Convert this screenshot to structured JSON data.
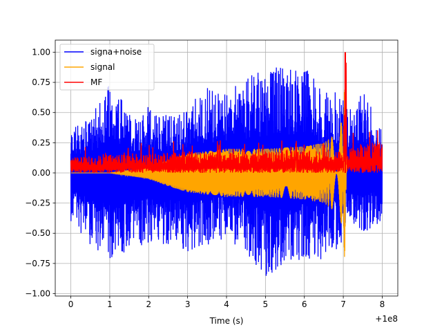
{
  "chart_data": {
    "type": "line",
    "title": "",
    "xlabel": "Time (s)",
    "ylabel": "",
    "x_offset_label": "+1e8",
    "xlim": [
      -0.4,
      8.4
    ],
    "ylim": [
      -1.02,
      1.1
    ],
    "xticks": [
      {
        "value": 0,
        "label": "0"
      },
      {
        "value": 1,
        "label": "1"
      },
      {
        "value": 2,
        "label": "2"
      },
      {
        "value": 3,
        "label": "3"
      },
      {
        "value": 4,
        "label": "4"
      },
      {
        "value": 5,
        "label": "5"
      },
      {
        "value": 6,
        "label": "6"
      },
      {
        "value": 7,
        "label": "7"
      },
      {
        "value": 8,
        "label": "8"
      }
    ],
    "yticks": [
      {
        "value": 1.0,
        "label": "1.00"
      },
      {
        "value": 0.75,
        "label": "0.75"
      },
      {
        "value": 0.5,
        "label": "0.50"
      },
      {
        "value": 0.25,
        "label": "0.25"
      },
      {
        "value": 0.0,
        "label": "0.00"
      },
      {
        "value": -0.25,
        "label": "−0.25"
      },
      {
        "value": -0.5,
        "label": "−0.50"
      },
      {
        "value": -0.75,
        "label": "−0.75"
      },
      {
        "value": -1.0,
        "label": "−1.00"
      }
    ],
    "grid": true,
    "legend_position": "top-left",
    "series": [
      {
        "name": "signa+noise",
        "color": "#0000ff",
        "description": "dense noisy oscillation, approximate upper/lower envelope",
        "x": [
          0,
          0.5,
          1,
          1.5,
          2,
          2.5,
          3,
          3.5,
          4,
          4.5,
          5,
          5.5,
          6,
          6.5,
          7,
          7.1,
          7.5,
          8
        ],
        "upper": [
          0.4,
          0.45,
          0.78,
          0.5,
          0.55,
          0.5,
          0.55,
          0.72,
          0.7,
          0.8,
          0.85,
          0.9,
          0.9,
          0.7,
          0.65,
          0.55,
          0.7,
          0.35
        ],
        "lower": [
          -0.4,
          -0.6,
          -0.75,
          -0.65,
          -0.6,
          -0.62,
          -0.65,
          -0.6,
          -0.55,
          -0.65,
          -0.9,
          -0.75,
          -0.72,
          -0.72,
          -0.6,
          -0.4,
          -0.5,
          -0.4
        ]
      },
      {
        "name": "signal",
        "color": "#ffa500",
        "description": "chirp, envelope grows toward merger near x=7.05",
        "x": [
          0,
          1,
          2,
          2.5,
          3,
          3.5,
          4,
          5,
          6,
          6.5,
          6.9,
          7.0,
          7.05,
          7.08
        ],
        "envelope": [
          0.0,
          0.0,
          0.05,
          0.11,
          0.16,
          0.18,
          0.2,
          0.2,
          0.22,
          0.25,
          0.35,
          0.5,
          0.82,
          0.0
        ]
      },
      {
        "name": "MF",
        "color": "#ff0000",
        "description": "matched-filter output, noise band with peak at merger",
        "x": [
          0,
          1,
          2,
          3,
          4,
          5,
          6,
          7,
          7.05,
          7.1,
          8
        ],
        "upper": [
          0.13,
          0.15,
          0.16,
          0.18,
          0.17,
          0.18,
          0.18,
          0.18,
          1.0,
          0.2,
          0.28
        ],
        "lower": [
          0.0,
          0.0,
          0.0,
          0.0,
          0.0,
          0.0,
          0.0,
          0.0,
          0.0,
          0.0,
          0.0
        ],
        "peak": {
          "x": 7.05,
          "y": 1.0
        }
      }
    ]
  }
}
